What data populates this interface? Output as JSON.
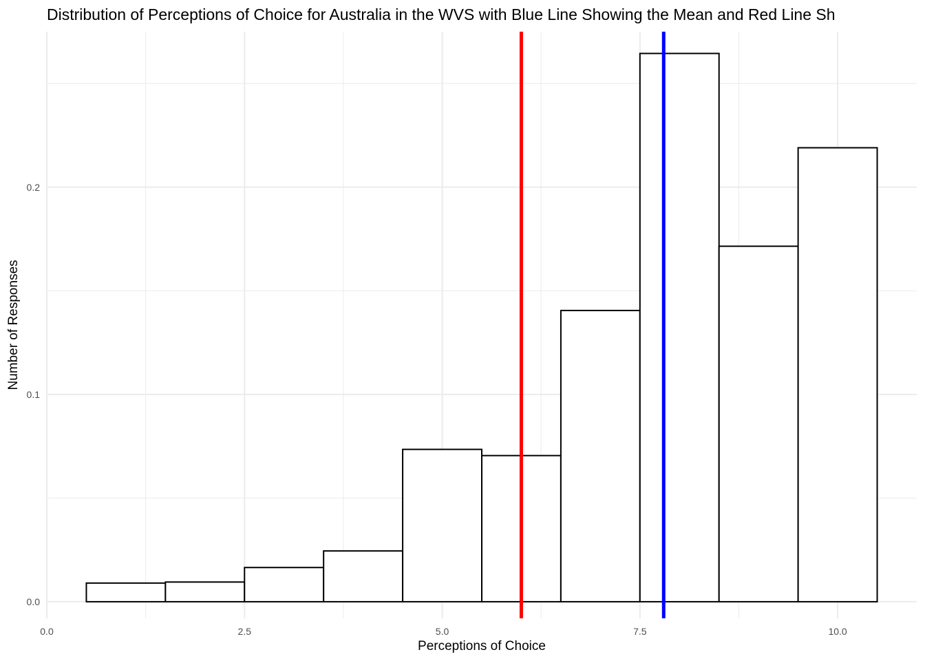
{
  "chart_data": {
    "type": "bar",
    "title": "Distribution of Perceptions of Choice for Australia in the WVS with Blue Line Showing the Mean and Red Line Sh",
    "xlabel": "Perceptions of Choice",
    "ylabel": "Number of Responses",
    "bins": [
      {
        "x": 1,
        "value": 0.009
      },
      {
        "x": 2,
        "value": 0.0095
      },
      {
        "x": 3,
        "value": 0.0165
      },
      {
        "x": 4,
        "value": 0.0245
      },
      {
        "x": 5,
        "value": 0.0735
      },
      {
        "x": 6,
        "value": 0.0705
      },
      {
        "x": 7,
        "value": 0.1405
      },
      {
        "x": 8,
        "value": 0.2645
      },
      {
        "x": 9,
        "value": 0.1715
      },
      {
        "x": 10,
        "value": 0.219
      }
    ],
    "bin_width": 1,
    "xlim": [
      0,
      11
    ],
    "ylim": [
      -0.008,
      0.275
    ],
    "x_ticks": [
      0,
      2.5,
      5,
      7.5,
      10
    ],
    "x_tick_labels": [
      "0.0",
      "2.5",
      "5.0",
      "7.5",
      "10.0"
    ],
    "y_ticks": [
      0,
      0.1,
      0.2
    ],
    "y_tick_labels": [
      "0.0",
      "0.1",
      "0.2"
    ],
    "reference_lines": [
      {
        "x": 6.0,
        "color": "#ff0000"
      },
      {
        "x": 7.8,
        "color": "#0000ff"
      }
    ],
    "grid": true,
    "colors": {
      "bar_fill": "#ffffff",
      "bar_stroke": "#000000",
      "grid": "#ebebeb",
      "tick_text": "#4d4d4d"
    }
  }
}
